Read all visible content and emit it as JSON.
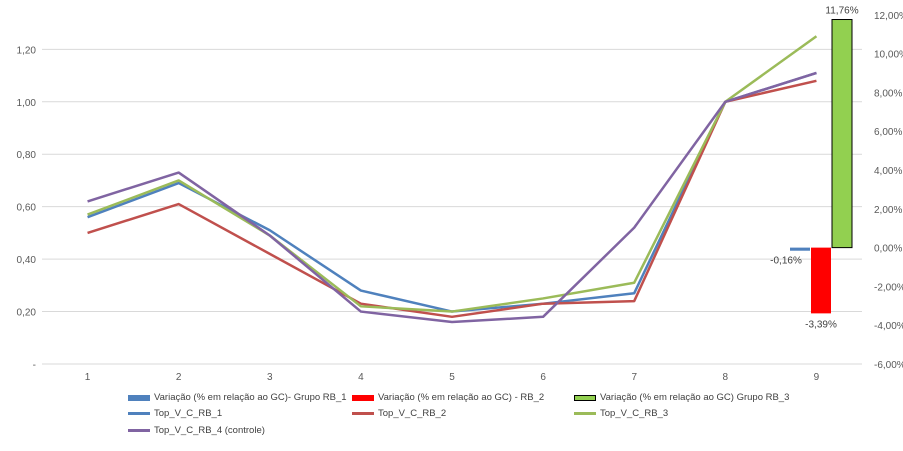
{
  "chart_data": {
    "type": "line",
    "categories": [
      "1",
      "2",
      "3",
      "4",
      "5",
      "6",
      "7",
      "8",
      "9"
    ],
    "y_left": {
      "ticks": [
        "-",
        "0,20",
        "0,40",
        "0,60",
        "0,80",
        "1,00",
        "1,20"
      ],
      "tick_values": [
        0,
        0.2,
        0.4,
        0.6,
        0.8,
        1.0,
        1.2
      ],
      "range": [
        0,
        1.35
      ],
      "grid": true
    },
    "y_right": {
      "ticks": [
        "-6,00%",
        "-4,00%",
        "-2,00%",
        "0,00%",
        "2,00%",
        "4,00%",
        "6,00%",
        "8,00%",
        "10,00%",
        "12,00%"
      ],
      "tick_values": [
        -6,
        -4,
        -2,
        0,
        2,
        4,
        6,
        8,
        10,
        12
      ],
      "range": [
        -6,
        12.25
      ]
    },
    "line_series": [
      {
        "name": "Top_V_C_RB_1",
        "color": "#4f81bd",
        "values": [
          0.56,
          0.69,
          0.51,
          0.28,
          0.2,
          0.23,
          0.27,
          1.0,
          1.11
        ]
      },
      {
        "name": "Top_V_C_RB_2",
        "color": "#c0504d",
        "values": [
          0.5,
          0.61,
          0.42,
          0.23,
          0.18,
          0.23,
          0.24,
          1.0,
          1.08
        ]
      },
      {
        "name": "Top_V_C_RB_3",
        "color": "#9bbb59",
        "values": [
          0.57,
          0.7,
          0.49,
          0.22,
          0.2,
          0.25,
          0.31,
          1.0,
          1.25
        ]
      },
      {
        "name": "Top_V_C_RB_4 (controle)",
        "color": "#8064a2",
        "values": [
          0.62,
          0.73,
          0.49,
          0.2,
          0.16,
          0.18,
          0.52,
          1.0,
          1.11
        ]
      }
    ],
    "bar_series": [
      {
        "name": "Variação (% em relação ao GC)- Grupo RB_1",
        "color": "#4f81bd",
        "category": "9",
        "value": -0.16,
        "label": "-0,16%"
      },
      {
        "name": "Variação (% em relação ao GC) - RB_2",
        "color": "#ff0000",
        "category": "9",
        "value": -3.39,
        "label": "-3,39%"
      },
      {
        "name": "Variação (% em relação ao GC) Grupo RB_3",
        "color": "#92d050",
        "category": "9",
        "value": 11.76,
        "label": "11,76%"
      }
    ],
    "legend_position": "bottom"
  }
}
